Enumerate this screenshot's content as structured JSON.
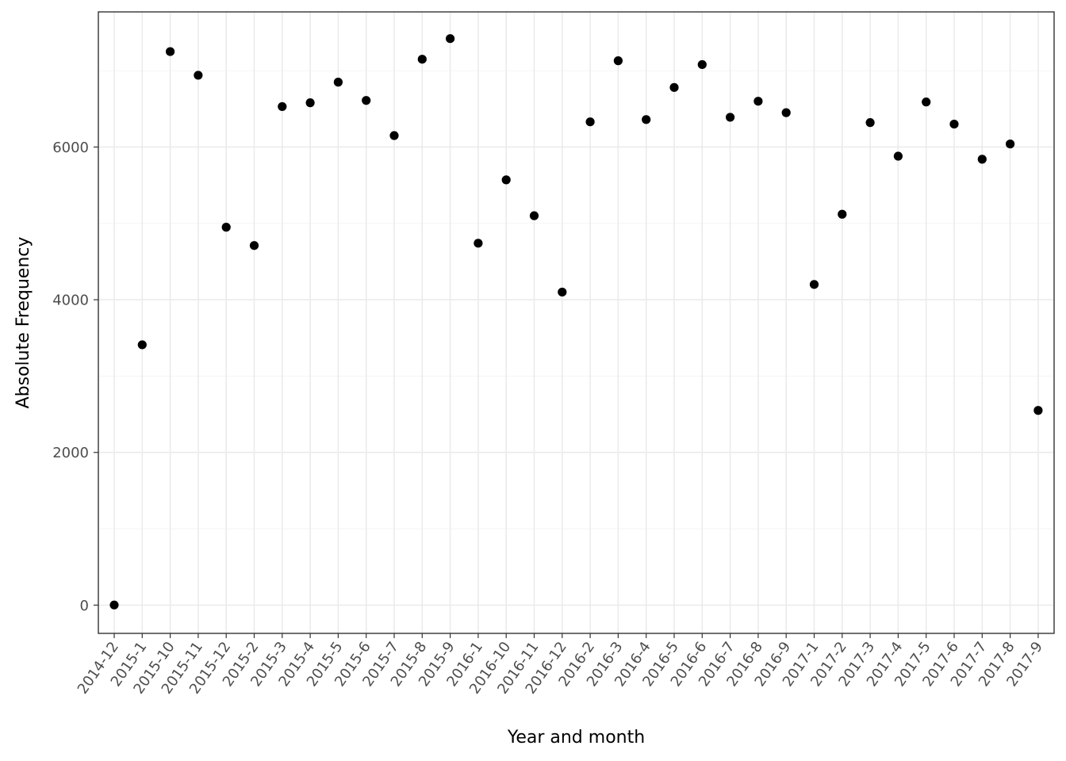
{
  "chart_data": {
    "type": "scatter",
    "title": "",
    "xlabel": "Year and month",
    "ylabel": "Absolute Frequency",
    "categories": [
      "2014-12",
      "2015-1",
      "2015-10",
      "2015-11",
      "2015-12",
      "2015-2",
      "2015-3",
      "2015-4",
      "2015-5",
      "2015-6",
      "2015-7",
      "2015-8",
      "2015-9",
      "2016-1",
      "2016-10",
      "2016-11",
      "2016-12",
      "2016-2",
      "2016-3",
      "2016-4",
      "2016-5",
      "2016-6",
      "2016-7",
      "2016-8",
      "2016-9",
      "2017-1",
      "2017-2",
      "2017-3",
      "2017-4",
      "2017-5",
      "2017-6",
      "2017-7",
      "2017-8",
      "2017-9"
    ],
    "values": [
      2,
      3410,
      7250,
      6940,
      4950,
      4710,
      6530,
      6580,
      6850,
      6610,
      6150,
      7150,
      7420,
      4740,
      5570,
      5100,
      4100,
      6330,
      7130,
      6360,
      6780,
      7080,
      6390,
      6600,
      6450,
      4200,
      5120,
      6320,
      5880,
      6590,
      6300,
      5840,
      6040,
      2550
    ],
    "ylim": [
      -370,
      7770
    ],
    "yticks": [
      0,
      2000,
      4000,
      6000
    ],
    "yticks_minor": [
      1000,
      3000,
      5000,
      7000
    ],
    "grid": true,
    "legend": "none",
    "point_color": "#000000"
  }
}
